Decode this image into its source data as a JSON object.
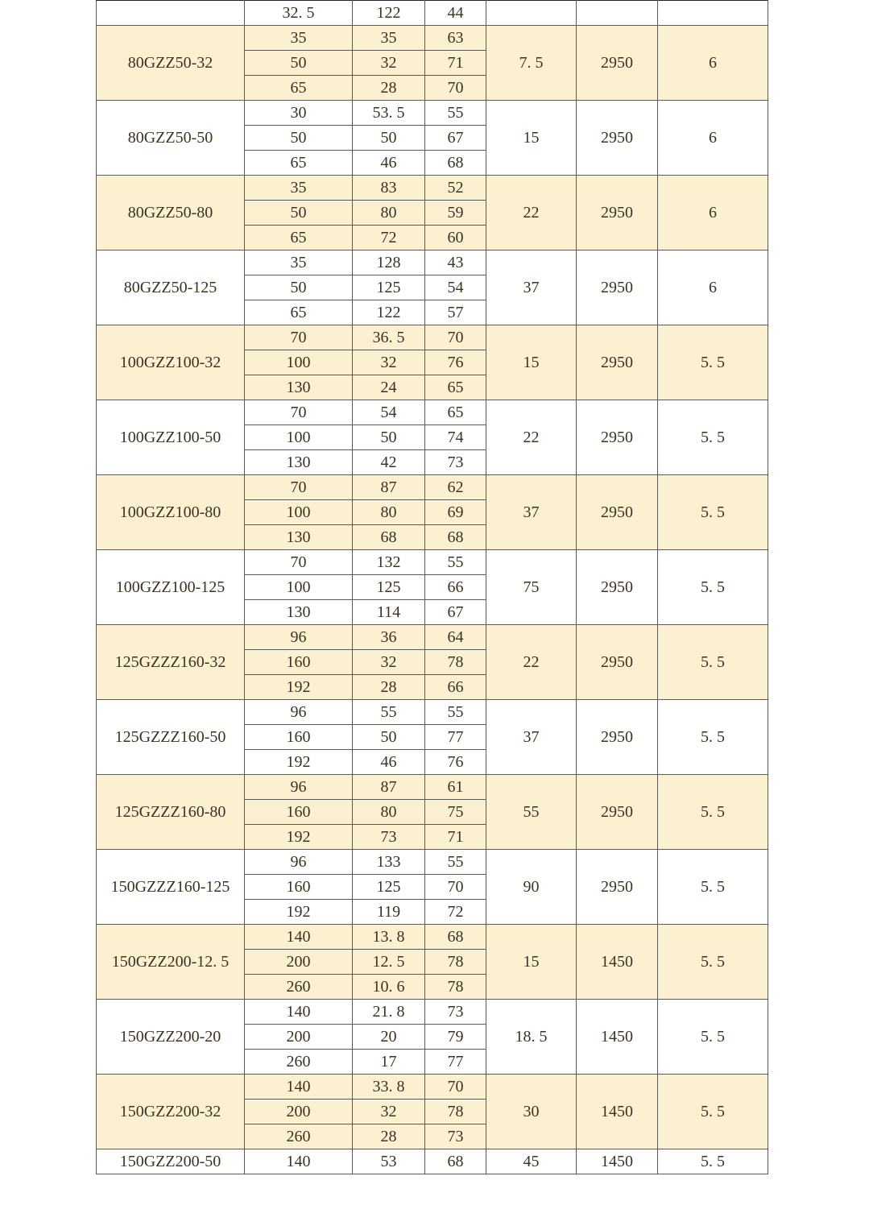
{
  "colors": {
    "shaded_row": "#fbf0cf",
    "border": "#5a5a5a",
    "text": "#3b3222"
  },
  "first_row": {
    "model": "",
    "flow": "32. 5",
    "head": "122",
    "efficiency": "44",
    "power": "",
    "speed": "",
    "npsh": ""
  },
  "groups": [
    {
      "model": "80GZZ50-32",
      "shaded": true,
      "rows": [
        [
          "35",
          "35",
          "63"
        ],
        [
          "50",
          "32",
          "71"
        ],
        [
          "65",
          "28",
          "70"
        ]
      ],
      "power": "7. 5",
      "speed": "2950",
      "npsh": "6"
    },
    {
      "model": "80GZZ50-50",
      "shaded": false,
      "rows": [
        [
          "30",
          "53. 5",
          "55"
        ],
        [
          "50",
          "50",
          "67"
        ],
        [
          "65",
          "46",
          "68"
        ]
      ],
      "power": "15",
      "speed": "2950",
      "npsh": "6"
    },
    {
      "model": "80GZZ50-80",
      "shaded": true,
      "rows": [
        [
          "35",
          "83",
          "52"
        ],
        [
          "50",
          "80",
          "59"
        ],
        [
          "65",
          "72",
          "60"
        ]
      ],
      "power": "22",
      "speed": "2950",
      "npsh": "6"
    },
    {
      "model": "80GZZ50-125",
      "shaded": false,
      "rows": [
        [
          "35",
          "128",
          "43"
        ],
        [
          "50",
          "125",
          "54"
        ],
        [
          "65",
          "122",
          "57"
        ]
      ],
      "power": "37",
      "speed": "2950",
      "npsh": "6"
    },
    {
      "model": "100GZZ100-32",
      "shaded": true,
      "rows": [
        [
          "70",
          "36. 5",
          "70"
        ],
        [
          "100",
          "32",
          "76"
        ],
        [
          "130",
          "24",
          "65"
        ]
      ],
      "power": "15",
      "speed": "2950",
      "npsh": "5. 5"
    },
    {
      "model": "100GZZ100-50",
      "shaded": false,
      "rows": [
        [
          "70",
          "54",
          "65"
        ],
        [
          "100",
          "50",
          "74"
        ],
        [
          "130",
          "42",
          "73"
        ]
      ],
      "power": "22",
      "speed": "2950",
      "npsh": "5. 5"
    },
    {
      "model": "100GZZ100-80",
      "shaded": true,
      "rows": [
        [
          "70",
          "87",
          "62"
        ],
        [
          "100",
          "80",
          "69"
        ],
        [
          "130",
          "68",
          "68"
        ]
      ],
      "power": "37",
      "speed": "2950",
      "npsh": "5. 5"
    },
    {
      "model": "100GZZ100-125",
      "shaded": false,
      "rows": [
        [
          "70",
          "132",
          "55"
        ],
        [
          "100",
          "125",
          "66"
        ],
        [
          "130",
          "114",
          "67"
        ]
      ],
      "power": "75",
      "speed": "2950",
      "npsh": "5. 5"
    },
    {
      "model": "125GZZZ160-32",
      "shaded": true,
      "rows": [
        [
          "96",
          "36",
          "64"
        ],
        [
          "160",
          "32",
          "78"
        ],
        [
          "192",
          "28",
          "66"
        ]
      ],
      "power": "22",
      "speed": "2950",
      "npsh": "5. 5"
    },
    {
      "model": "125GZZZ160-50",
      "shaded": false,
      "rows": [
        [
          "96",
          "55",
          "55"
        ],
        [
          "160",
          "50",
          "77"
        ],
        [
          "192",
          "46",
          "76"
        ]
      ],
      "power": "37",
      "speed": "2950",
      "npsh": "5. 5"
    },
    {
      "model": "125GZZZ160-80",
      "shaded": true,
      "rows": [
        [
          "96",
          "87",
          "61"
        ],
        [
          "160",
          "80",
          "75"
        ],
        [
          "192",
          "73",
          "71"
        ]
      ],
      "power": "55",
      "speed": "2950",
      "npsh": "5. 5"
    },
    {
      "model": "150GZZZ160-125",
      "shaded": false,
      "rows": [
        [
          "96",
          "133",
          "55"
        ],
        [
          "160",
          "125",
          "70"
        ],
        [
          "192",
          "119",
          "72"
        ]
      ],
      "power": "90",
      "speed": "2950",
      "npsh": "5. 5"
    },
    {
      "model": "150GZZ200-12. 5",
      "shaded": true,
      "rows": [
        [
          "140",
          "13. 8",
          "68"
        ],
        [
          "200",
          "12. 5",
          "78"
        ],
        [
          "260",
          "10. 6",
          "78"
        ]
      ],
      "power": "15",
      "speed": "1450",
      "npsh": "5. 5"
    },
    {
      "model": "150GZZ200-20",
      "shaded": false,
      "rows": [
        [
          "140",
          "21. 8",
          "73"
        ],
        [
          "200",
          "20",
          "79"
        ],
        [
          "260",
          "17",
          "77"
        ]
      ],
      "power": "18. 5",
      "speed": "1450",
      "npsh": "5. 5"
    },
    {
      "model": "150GZZ200-32",
      "shaded": true,
      "rows": [
        [
          "140",
          "33. 8",
          "70"
        ],
        [
          "200",
          "32",
          "78"
        ],
        [
          "260",
          "28",
          "73"
        ]
      ],
      "power": "30",
      "speed": "1450",
      "npsh": "5. 5"
    }
  ],
  "last_row": {
    "model": "150GZZ200-50",
    "flow": "140",
    "head": "53",
    "efficiency": "68",
    "power": "45",
    "speed": "1450",
    "npsh": "5. 5"
  }
}
